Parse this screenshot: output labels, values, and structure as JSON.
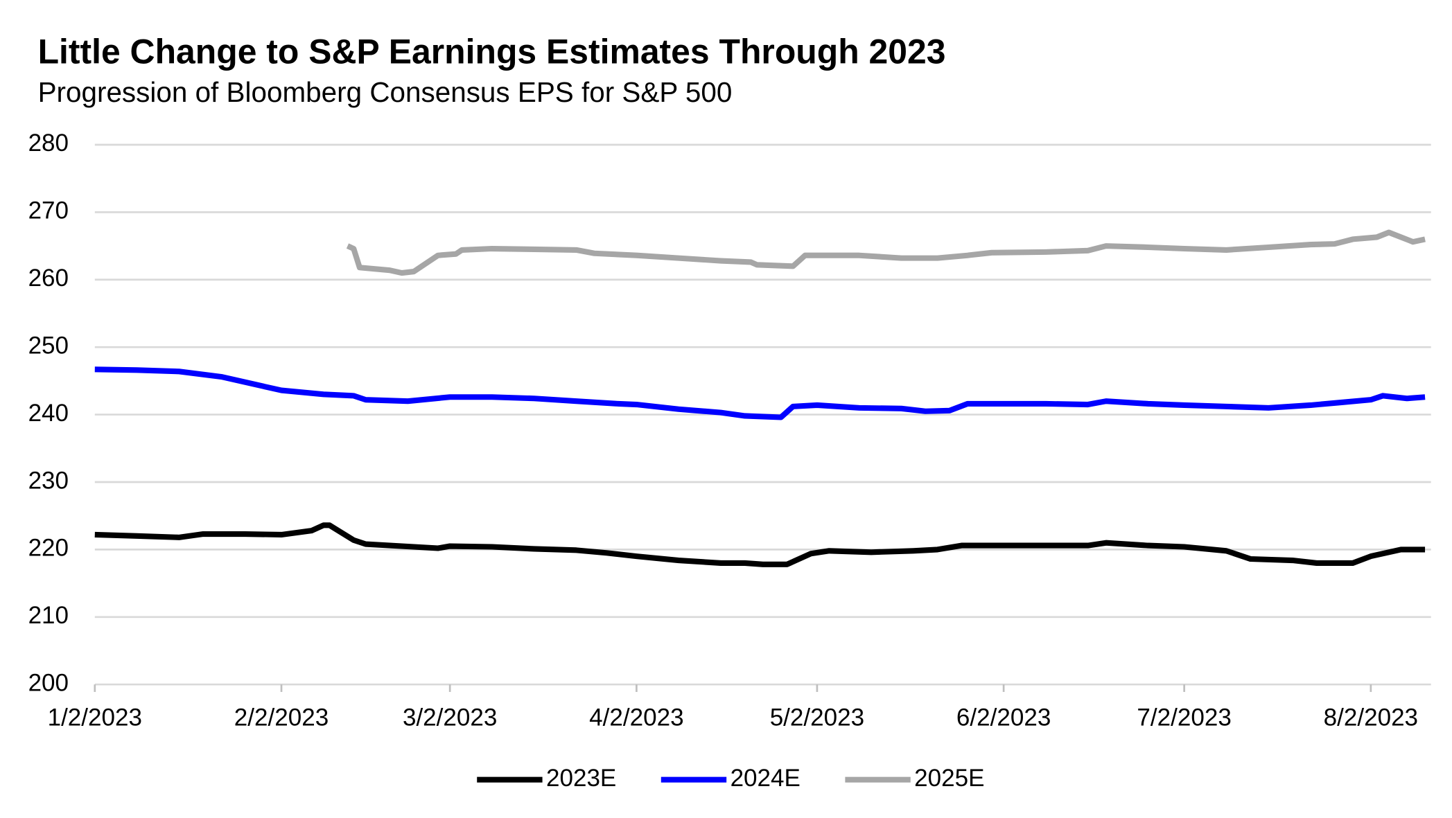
{
  "chart_data": {
    "type": "line",
    "title": "Little Change to S&P Earnings Estimates Through 2023",
    "subtitle": "Progression of Bloomberg Consensus EPS for S&P 500",
    "xlim": [
      "1/2/2023",
      "8/12/2023"
    ],
    "xticks": [
      "1/2/2023",
      "2/2/2023",
      "3/2/2023",
      "4/2/2023",
      "5/2/2023",
      "6/2/2023",
      "7/2/2023",
      "8/2/2023"
    ],
    "ylim": [
      200,
      280
    ],
    "yticks": [
      200,
      210,
      220,
      230,
      240,
      250,
      260,
      270,
      280
    ],
    "grid": true,
    "legend": "bottom",
    "series": [
      {
        "name": "2023E",
        "color": "#000000",
        "x": [
          "1/2/2023",
          "1/9/2023",
          "1/16/2023",
          "1/20/2023",
          "1/27/2023",
          "2/2/2023",
          "2/7/2023",
          "2/9/2023",
          "2/10/2023",
          "2/14/2023",
          "2/16/2023",
          "2/28/2023",
          "3/2/2023",
          "3/9/2023",
          "3/16/2023",
          "3/23/2023",
          "3/28/2023",
          "4/2/2023",
          "4/9/2023",
          "4/16/2023",
          "4/20/2023",
          "4/23/2023",
          "4/27/2023",
          "5/1/2023",
          "5/4/2023",
          "5/11/2023",
          "5/18/2023",
          "5/22/2023",
          "5/26/2023",
          "6/2/2023",
          "6/9/2023",
          "6/16/2023",
          "6/19/2023",
          "6/26/2023",
          "7/2/2023",
          "7/9/2023",
          "7/13/2023",
          "7/20/2023",
          "7/24/2023",
          "7/30/2023",
          "8/2/2023",
          "8/5/2023",
          "8/7/2023",
          "8/11/2023"
        ],
        "values": [
          222.2,
          222.0,
          221.8,
          222.3,
          222.3,
          222.2,
          222.8,
          223.6,
          223.6,
          221.4,
          220.8,
          220.2,
          220.5,
          220.4,
          220.1,
          219.9,
          219.5,
          219.0,
          218.4,
          218.0,
          218.0,
          217.8,
          217.8,
          219.4,
          219.8,
          219.6,
          219.8,
          220.0,
          220.6,
          220.6,
          220.6,
          220.6,
          221.0,
          220.6,
          220.4,
          219.8,
          218.6,
          218.4,
          218.0,
          218.0,
          219.0,
          219.6,
          220.0,
          220.0
        ]
      },
      {
        "name": "2024E",
        "color": "#0000ff",
        "x": [
          "1/2/2023",
          "1/9/2023",
          "1/16/2023",
          "1/23/2023",
          "1/30/2023",
          "2/2/2023",
          "2/9/2023",
          "2/14/2023",
          "2/16/2023",
          "2/23/2023",
          "3/2/2023",
          "3/9/2023",
          "3/16/2023",
          "3/23/2023",
          "3/30/2023",
          "4/2/2023",
          "4/9/2023",
          "4/16/2023",
          "4/20/2023",
          "4/26/2023",
          "4/28/2023",
          "5/2/2023",
          "5/9/2023",
          "5/16/2023",
          "5/20/2023",
          "5/24/2023",
          "5/27/2023",
          "6/2/2023",
          "6/9/2023",
          "6/16/2023",
          "6/19/2023",
          "6/26/2023",
          "7/2/2023",
          "7/9/2023",
          "7/16/2023",
          "7/23/2023",
          "7/28/2023",
          "8/2/2023",
          "8/4/2023",
          "8/8/2023",
          "8/11/2023"
        ],
        "values": [
          246.7,
          246.6,
          246.4,
          245.6,
          244.2,
          243.6,
          243.0,
          242.8,
          242.2,
          242.0,
          242.6,
          242.6,
          242.4,
          242.0,
          241.6,
          241.5,
          240.8,
          240.3,
          239.8,
          239.6,
          241.2,
          241.4,
          241.0,
          240.9,
          240.5,
          240.6,
          241.6,
          241.6,
          241.6,
          241.5,
          242.0,
          241.6,
          241.4,
          241.2,
          241.0,
          241.4,
          241.8,
          242.2,
          242.8,
          242.4,
          242.6
        ]
      },
      {
        "name": "2025E",
        "color": "#a6a6a6",
        "x": [
          "2/13/2023",
          "2/14/2023",
          "2/15/2023",
          "2/20/2023",
          "2/22/2023",
          "2/24/2023",
          "2/28/2023",
          "3/3/2023",
          "3/4/2023",
          "3/9/2023",
          "3/16/2023",
          "3/23/2023",
          "3/26/2023",
          "4/2/2023",
          "4/9/2023",
          "4/16/2023",
          "4/21/2023",
          "4/22/2023",
          "4/28/2023",
          "4/30/2023",
          "5/9/2023",
          "5/16/2023",
          "5/22/2023",
          "5/27/2023",
          "5/31/2023",
          "6/9/2023",
          "6/16/2023",
          "6/19/2023",
          "6/26/2023",
          "7/2/2023",
          "7/9/2023",
          "7/16/2023",
          "7/23/2023",
          "7/27/2023",
          "7/30/2023",
          "8/3/2023",
          "8/5/2023",
          "8/9/2023",
          "8/11/2023"
        ],
        "values": [
          265.0,
          264.6,
          261.8,
          261.4,
          261.0,
          261.2,
          263.6,
          263.8,
          264.4,
          264.6,
          264.5,
          264.4,
          263.9,
          263.6,
          263.2,
          262.8,
          262.6,
          262.2,
          262.0,
          263.6,
          263.6,
          263.2,
          263.2,
          263.6,
          264.0,
          264.1,
          264.3,
          265.0,
          264.8,
          264.6,
          264.4,
          264.8,
          265.2,
          265.3,
          266.0,
          266.3,
          267.0,
          265.6,
          266.0
        ]
      }
    ]
  }
}
